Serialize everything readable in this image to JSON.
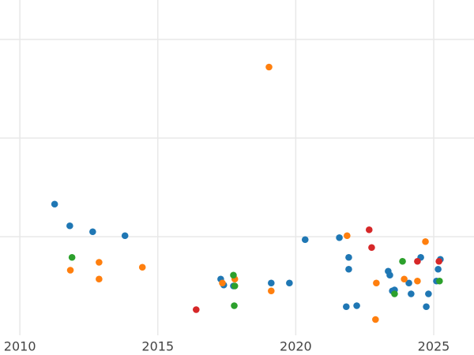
{
  "chart_data": {
    "type": "scatter",
    "xlim": [
      2009.28,
      2026.46
    ],
    "ylim": [
      0,
      3.4
    ],
    "xticks": [
      2010,
      2015,
      2020,
      2025
    ],
    "yticks": [
      1,
      2,
      3
    ],
    "grid": true,
    "series": [
      {
        "color": "#1f77b4",
        "x": [
          2011.26,
          2011.81,
          2012.64,
          2013.81,
          2017.28,
          2017.39,
          2017.74,
          2019.11,
          2019.77,
          2020.34,
          2021.58,
          2021.92,
          2021.92,
          2021.83,
          2022.21,
          2023.35,
          2023.41,
          2023.5,
          2023.58,
          2024.1,
          2024.18,
          2024.53,
          2024.73,
          2024.81,
          2025.1,
          2025.16,
          2025.24
        ],
        "y": [
          1.33,
          1.11,
          1.05,
          1.01,
          0.57,
          0.51,
          0.5,
          0.53,
          0.53,
          0.97,
          0.99,
          0.79,
          0.67,
          0.29,
          0.3,
          0.65,
          0.61,
          0.45,
          0.46,
          0.53,
          0.42,
          0.79,
          0.29,
          0.42,
          0.55,
          0.67,
          0.77
        ]
      },
      {
        "color": "#ff7f0e",
        "x": [
          2019.03,
          2011.83,
          2012.87,
          2012.87,
          2014.44,
          2017.34,
          2017.79,
          2019.11,
          2021.86,
          2022.92,
          2022.89,
          2023.93,
          2024.41,
          2024.7
        ],
        "y": [
          2.72,
          0.66,
          0.74,
          0.57,
          0.69,
          0.53,
          0.57,
          0.45,
          1.01,
          0.53,
          0.16,
          0.57,
          0.55,
          0.95
        ]
      },
      {
        "color": "#2ca02c",
        "x": [
          2011.89,
          2017.74,
          2017.79,
          2017.77,
          2023.58,
          2023.87,
          2025.21
        ],
        "y": [
          0.79,
          0.61,
          0.5,
          0.3,
          0.42,
          0.75,
          0.55
        ]
      },
      {
        "color": "#d62728",
        "x": [
          2016.39,
          2022.66,
          2022.75,
          2024.41,
          2025.19
        ],
        "y": [
          0.26,
          1.07,
          0.89,
          0.75,
          0.75
        ]
      }
    ]
  }
}
